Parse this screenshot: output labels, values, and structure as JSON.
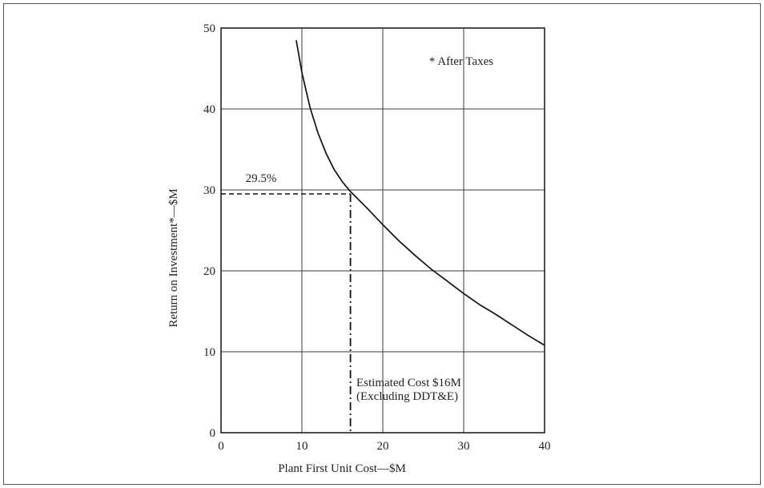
{
  "chart_data": {
    "type": "line",
    "xlabel": "Plant First Unit Cost—$M",
    "ylabel": "Return on Investment*—$M",
    "xlim": [
      0,
      40
    ],
    "ylim": [
      0,
      50
    ],
    "xticks": [
      0,
      10,
      20,
      30,
      40
    ],
    "yticks": [
      0,
      10,
      20,
      30,
      40,
      50
    ],
    "grid": true,
    "series": [
      {
        "x": [
          9.3,
          10,
          11,
          12,
          13,
          14,
          15,
          16,
          17,
          18,
          20,
          22,
          24,
          26,
          28,
          30,
          32,
          34,
          36,
          38,
          40
        ],
        "y": [
          48.5,
          44.5,
          40.2,
          37.0,
          34.5,
          32.5,
          31.0,
          29.8,
          28.8,
          27.8,
          25.7,
          23.7,
          21.9,
          20.2,
          18.7,
          17.2,
          15.8,
          14.6,
          13.3,
          12.0,
          10.8
        ]
      }
    ],
    "reference": {
      "x": 16,
      "y": 29.5,
      "y_label": "29.5%",
      "x_label_line1": "Estimated Cost $16M",
      "x_label_line2": "(Excluding DDT&E)"
    },
    "annotation": "* After Taxes"
  }
}
